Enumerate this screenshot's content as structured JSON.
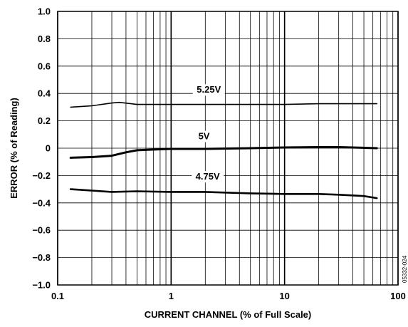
{
  "chart_data": {
    "type": "line",
    "title": "",
    "xlabel": "CURRENT CHANNEL (% of Full Scale)",
    "ylabel": "ERROR (% of Reading)",
    "xscale": "log",
    "xlim": [
      0.1,
      100
    ],
    "ylim": [
      -1.0,
      1.0
    ],
    "grid": true,
    "x_ticks": [
      "0.1",
      "1",
      "10",
      "100"
    ],
    "y_ticks": [
      "1.0",
      "0.8",
      "0.6",
      "0.4",
      "0.2",
      "0",
      "−0.2",
      "−0.4",
      "−0.6",
      "−0.8",
      "−1.0"
    ],
    "figure_id": "05332-024",
    "series": [
      {
        "name": "5.25V",
        "x": [
          0.13,
          0.2,
          0.3,
          0.35,
          0.5,
          1,
          2,
          5,
          10,
          20,
          30,
          65
        ],
        "y": [
          0.3,
          0.31,
          0.33,
          0.335,
          0.32,
          0.32,
          0.32,
          0.32,
          0.32,
          0.325,
          0.325,
          0.325
        ]
      },
      {
        "name": "5V",
        "x": [
          0.13,
          0.2,
          0.3,
          0.4,
          0.5,
          0.7,
          1,
          2,
          5,
          10,
          20,
          30,
          65
        ],
        "y": [
          -0.07,
          -0.065,
          -0.055,
          -0.03,
          -0.015,
          -0.01,
          -0.005,
          -0.005,
          0.0,
          0.005,
          0.008,
          0.008,
          0.0
        ]
      },
      {
        "name": "4.75V",
        "x": [
          0.13,
          0.2,
          0.3,
          0.5,
          1,
          2,
          5,
          10,
          20,
          30,
          50,
          65
        ],
        "y": [
          -0.3,
          -0.31,
          -0.32,
          -0.315,
          -0.32,
          -0.32,
          -0.33,
          -0.335,
          -0.335,
          -0.34,
          -0.35,
          -0.365
        ]
      }
    ]
  }
}
